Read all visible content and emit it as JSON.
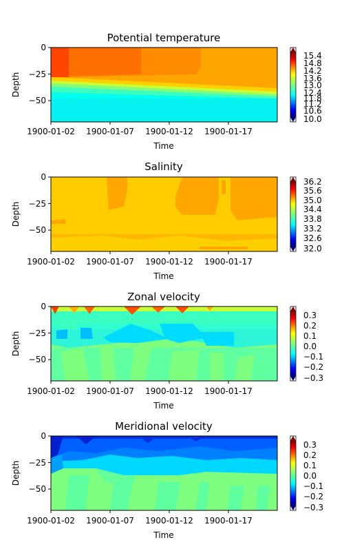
{
  "chart_data": [
    {
      "type": "heatmap",
      "title": "Potential temperature",
      "xlabel": "Time",
      "ylabel": "Depth",
      "x_range": [
        "1900-01-02",
        "1900-01-21"
      ],
      "x_ticks": [
        "1900-01-02",
        "1900-01-07",
        "1900-01-12",
        "1900-01-17"
      ],
      "y_range": [
        -70,
        0
      ],
      "y_ticks": [
        0,
        -25,
        -50
      ],
      "colorbar": {
        "ticks": [
          "15.4",
          "14.8",
          "14.2",
          "13.6",
          "13.0",
          "12.4",
          "11.8",
          "11.2",
          "10.6",
          "10.0"
        ],
        "min": 10.0,
        "max": 15.4,
        "extend": "both"
      },
      "description_values": {
        "surface_warm_top_left": 15.1,
        "surface_mid": 14.5,
        "surface_late": 14.1,
        "thermocline_depth_start": -30,
        "thermocline_depth_end": -45,
        "deep_value": 11.0
      }
    },
    {
      "type": "heatmap",
      "title": "Salinity",
      "xlabel": "Time",
      "ylabel": "Depth",
      "x_range": [
        "1900-01-02",
        "1900-01-21"
      ],
      "x_ticks": [
        "1900-01-02",
        "1900-01-07",
        "1900-01-12",
        "1900-01-17"
      ],
      "y_range": [
        -70,
        0
      ],
      "y_ticks": [
        0,
        -25,
        -50
      ],
      "colorbar": {
        "ticks": [
          "36.2",
          "35.6",
          "35.0",
          "34.4",
          "33.8",
          "33.2",
          "32.6",
          "32.0"
        ],
        "min": 32.0,
        "max": 36.2,
        "extend": "both"
      },
      "description_values": {
        "background": 34.7,
        "patches_high": 35.0
      }
    },
    {
      "type": "heatmap",
      "title": "Zonal velocity",
      "xlabel": "Time",
      "ylabel": "Depth",
      "x_range": [
        "1900-01-02",
        "1900-01-21"
      ],
      "x_ticks": [
        "1900-01-02",
        "1900-01-07",
        "1900-01-12",
        "1900-01-17"
      ],
      "y_range": [
        -70,
        0
      ],
      "y_ticks": [
        0,
        -25,
        -50
      ],
      "colorbar": {
        "ticks": [
          "0.3",
          "0.2",
          "0.1",
          "0.0",
          "−0.1",
          "−0.2",
          "−0.3"
        ],
        "min": -0.3,
        "max": 0.3,
        "extend": "both"
      },
      "description_values": {
        "surface_bursts": 0.25,
        "subsurface_negative": -0.08,
        "deep": 0.05
      }
    },
    {
      "type": "heatmap",
      "title": "Meridional velocity",
      "xlabel": "Time",
      "ylabel": "Depth",
      "x_range": [
        "1900-01-02",
        "1900-01-21"
      ],
      "x_ticks": [
        "1900-01-02",
        "1900-01-07",
        "1900-01-12",
        "1900-01-17"
      ],
      "y_range": [
        -70,
        0
      ],
      "y_ticks": [
        0,
        -25,
        -50
      ],
      "colorbar": {
        "ticks": [
          "0.3",
          "0.2",
          "0.1",
          "0.0",
          "−0.1",
          "−0.2",
          "−0.3"
        ],
        "min": -0.3,
        "max": 0.3,
        "extend": "both"
      },
      "description_values": {
        "surface_negative": -0.2,
        "upper_negative": -0.12,
        "deep": 0.03
      }
    }
  ]
}
